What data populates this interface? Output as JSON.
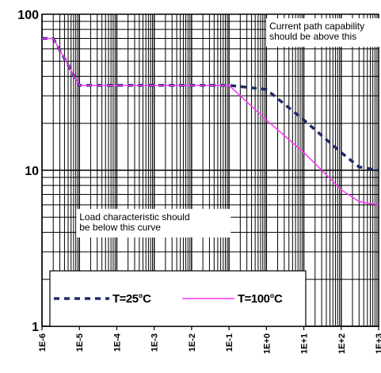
{
  "chart_data": {
    "type": "line",
    "x_scale": "log",
    "y_scale": "log",
    "xlim": [
      1e-06,
      1000
    ],
    "ylim": [
      1,
      100
    ],
    "x_tick_labels": [
      "1E-6",
      "1E-5",
      "1E-4",
      "1E-3",
      "1E-2",
      "1E-1",
      "1E+0",
      "1E+1",
      "1E+2",
      "1E+3"
    ],
    "y_tick_labels": [
      "1",
      "10",
      "100"
    ],
    "grid": true,
    "legend_placement": "bottom-left",
    "series": [
      {
        "name": "T=25°C",
        "style": "dashed",
        "color": "#1f2a6b",
        "x": [
          1e-06,
          2e-06,
          1e-05,
          0.001,
          0.1,
          1,
          10,
          100,
          300,
          1000
        ],
        "y": [
          70,
          70,
          35,
          35,
          35,
          33,
          21,
          13,
          10.5,
          10
        ]
      },
      {
        "name": "T=100°C",
        "style": "solid",
        "color": "#ff33ff",
        "x": [
          1e-06,
          2e-06,
          1e-05,
          0.001,
          0.1,
          1,
          10,
          100,
          300,
          1000
        ],
        "y": [
          70,
          70,
          35,
          35,
          35,
          21,
          13,
          7.5,
          6.3,
          6
        ]
      }
    ],
    "annotations": [
      {
        "lines": [
          "Current path capability",
          "should be above this"
        ],
        "x": 1.2,
        "y": 80
      },
      {
        "lines": [
          "Load characteristic should",
          "be below this curve"
        ],
        "x": 1e-05,
        "y": 4.8
      }
    ],
    "legend_entries": [
      "T=25°C",
      "T=100°C"
    ]
  }
}
